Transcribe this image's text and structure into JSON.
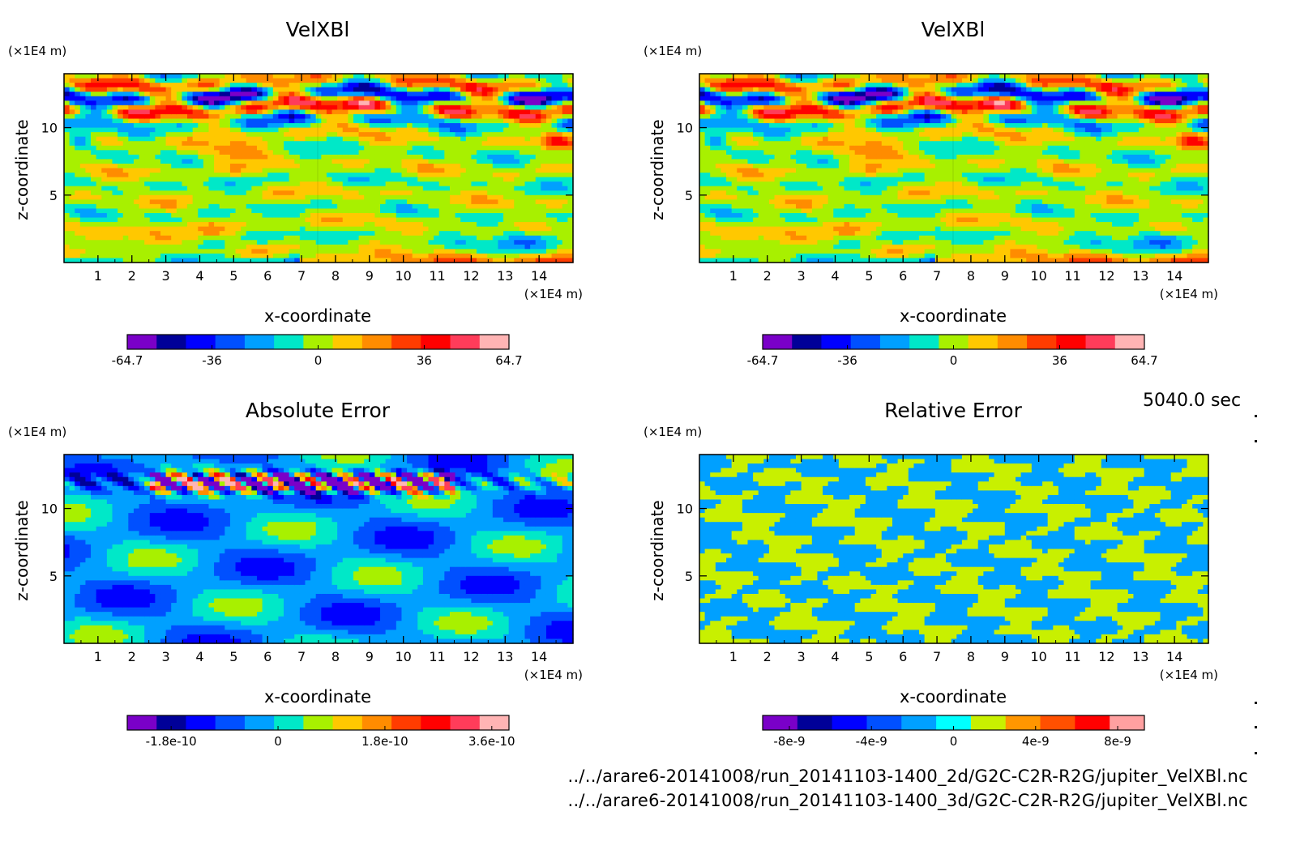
{
  "time_label": "5040.0 sec",
  "file_paths": [
    "../../arare6-20141008/run_20141103-1400_2d/G2C-C2R-R2G/jupiter_VelXBl.nc",
    "../../arare6-20141008/run_20141103-1400_3d/G2C-C2R-R2G/jupiter_VelXBl.nc"
  ],
  "chart_data": [
    {
      "type": "heatmap",
      "title": "VelXBl",
      "xlabel": "x-coordinate",
      "ylabel": "z-coordinate",
      "x_unit": "(×1E4 m)",
      "y_unit": "(×1E4 m)",
      "xlim": [
        0,
        15
      ],
      "ylim": [
        0,
        14
      ],
      "x_ticks": [
        "1",
        "2",
        "3",
        "4",
        "5",
        "6",
        "7",
        "8",
        "9",
        "10",
        "11",
        "12",
        "13",
        "14"
      ],
      "y_ticks": [
        "5",
        "10"
      ],
      "field": "velocity",
      "colorbar": {
        "colors": [
          "#7a00c8",
          "#000098",
          "#0000ff",
          "#0050ff",
          "#00a0ff",
          "#00e8c8",
          "#a8f000",
          "#ffc800",
          "#ff8c00",
          "#ff3c00",
          "#ff0000",
          "#ff3c5a",
          "#ffb4b4"
        ],
        "tick_labels": [
          "-64.7",
          "-36",
          "0",
          "36",
          "64.7"
        ]
      }
    },
    {
      "type": "heatmap",
      "title": "VelXBl",
      "xlabel": "x-coordinate",
      "ylabel": "z-coordinate",
      "x_unit": "(×1E4 m)",
      "y_unit": "(×1E4 m)",
      "xlim": [
        0,
        15
      ],
      "ylim": [
        0,
        14
      ],
      "x_ticks": [
        "1",
        "2",
        "3",
        "4",
        "5",
        "6",
        "7",
        "8",
        "9",
        "10",
        "11",
        "12",
        "13",
        "14"
      ],
      "y_ticks": [
        "5",
        "10"
      ],
      "field": "velocity",
      "colorbar": {
        "colors": [
          "#7a00c8",
          "#000098",
          "#0000ff",
          "#0050ff",
          "#00a0ff",
          "#00e8c8",
          "#a8f000",
          "#ffc800",
          "#ff8c00",
          "#ff3c00",
          "#ff0000",
          "#ff3c5a",
          "#ffb4b4"
        ],
        "tick_labels": [
          "-64.7",
          "-36",
          "0",
          "36",
          "64.7"
        ]
      }
    },
    {
      "type": "heatmap",
      "title": "Absolute Error",
      "xlabel": "x-coordinate",
      "ylabel": "z-coordinate",
      "x_unit": "(×1E4 m)",
      "y_unit": "(×1E4 m)",
      "xlim": [
        0,
        15
      ],
      "ylim": [
        0,
        14
      ],
      "x_ticks": [
        "1",
        "2",
        "3",
        "4",
        "5",
        "6",
        "7",
        "8",
        "9",
        "10",
        "11",
        "12",
        "13",
        "14"
      ],
      "y_ticks": [
        "5",
        "10"
      ],
      "field": "abs_error",
      "colorbar": {
        "colors": [
          "#7a00c8",
          "#000098",
          "#0000ff",
          "#0050ff",
          "#00a0ff",
          "#00e8c8",
          "#a8f000",
          "#ffc800",
          "#ff8c00",
          "#ff3c00",
          "#ff0000",
          "#ff3c5a",
          "#ffb4b4"
        ],
        "tick_labels": [
          "-1.8e-10",
          "0",
          "1.8e-10",
          "3.6e-10"
        ]
      }
    },
    {
      "type": "heatmap",
      "title": "Relative Error",
      "xlabel": "x-coordinate",
      "ylabel": "z-coordinate",
      "x_unit": "(×1E4 m)",
      "y_unit": "(×1E4 m)",
      "xlim": [
        0,
        15
      ],
      "ylim": [
        0,
        14
      ],
      "x_ticks": [
        "1",
        "2",
        "3",
        "4",
        "5",
        "6",
        "7",
        "8",
        "9",
        "10",
        "11",
        "12",
        "13",
        "14"
      ],
      "y_ticks": [
        "5",
        "10"
      ],
      "field": "rel_error",
      "colorbar": {
        "colors": [
          "#7a00c8",
          "#000098",
          "#0000ff",
          "#0050ff",
          "#00a0ff",
          "#00ffff",
          "#c8f000",
          "#ff9600",
          "#ff5000",
          "#ff0000",
          "#ffa0a0"
        ],
        "tick_labels": [
          "-8e-9",
          "-4e-9",
          "0",
          "4e-9",
          "8e-9"
        ]
      }
    }
  ]
}
